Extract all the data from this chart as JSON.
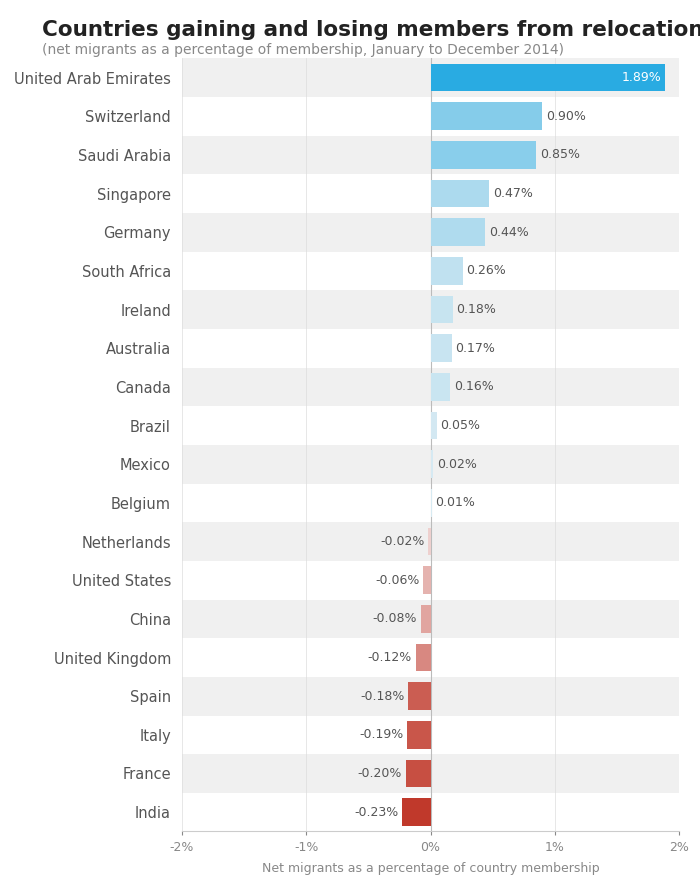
{
  "title": "Countries gaining and losing members from relocation",
  "subtitle": "(net migrants as a percentage of membership, January to December 2014)",
  "xlabel": "Net migrants as a percentage of country membership",
  "categories": [
    "United Arab Emirates",
    "Switzerland",
    "Saudi Arabia",
    "Singapore",
    "Germany",
    "South Africa",
    "Ireland",
    "Australia",
    "Canada",
    "Brazil",
    "Mexico",
    "Belgium",
    "Netherlands",
    "United States",
    "China",
    "United Kingdom",
    "Spain",
    "Italy",
    "France",
    "India"
  ],
  "values": [
    1.89,
    0.9,
    0.85,
    0.47,
    0.44,
    0.26,
    0.18,
    0.17,
    0.16,
    0.05,
    0.02,
    0.01,
    -0.02,
    -0.06,
    -0.08,
    -0.12,
    -0.18,
    -0.19,
    -0.2,
    -0.23
  ],
  "row_bg_even": "#f0f0f0",
  "row_bg_odd": "#ffffff",
  "title_color": "#222222",
  "subtitle_color": "#888888",
  "label_color": "#555555",
  "value_color": "#555555",
  "xlim": [
    -2.0,
    2.0
  ],
  "xtick_labels": [
    "-2%",
    "-1%",
    "0%",
    "1%",
    "2%"
  ],
  "xtick_values": [
    -2.0,
    -1.0,
    0.0,
    1.0,
    2.0
  ]
}
